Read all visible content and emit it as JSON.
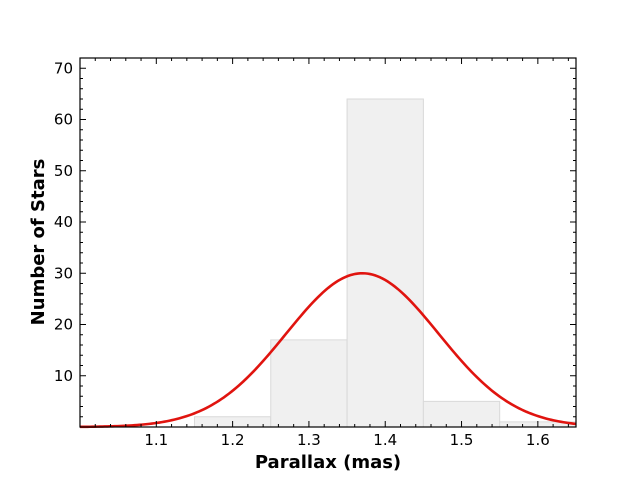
{
  "chart_data": {
    "type": "bar",
    "title": "",
    "xlabel": "Parallax (mas)",
    "ylabel": "Number of Stars",
    "xlim": [
      1.0,
      1.65
    ],
    "ylim": [
      0,
      72
    ],
    "xticks": [
      "1.1",
      "1.2",
      "1.3",
      "1.4",
      "1.5",
      "1.6"
    ],
    "yticks": [
      "10",
      "20",
      "30",
      "40",
      "50",
      "60",
      "70"
    ],
    "bins": [
      {
        "x0": 1.15,
        "x1": 1.25,
        "count": 2
      },
      {
        "x0": 1.25,
        "x1": 1.35,
        "count": 17
      },
      {
        "x0": 1.35,
        "x1": 1.45,
        "count": 64
      },
      {
        "x0": 1.45,
        "x1": 1.55,
        "count": 5
      },
      {
        "x0": 1.55,
        "x1": 1.65,
        "count": 1
      }
    ],
    "fit": {
      "type": "gaussian",
      "mean": 1.37,
      "sigma": 0.1,
      "peak": 30,
      "color": "#e0140f"
    },
    "bar_color": "#f0f0f0",
    "bar_edge_color": "#d9d9d9",
    "grid": false,
    "legend": "none"
  }
}
